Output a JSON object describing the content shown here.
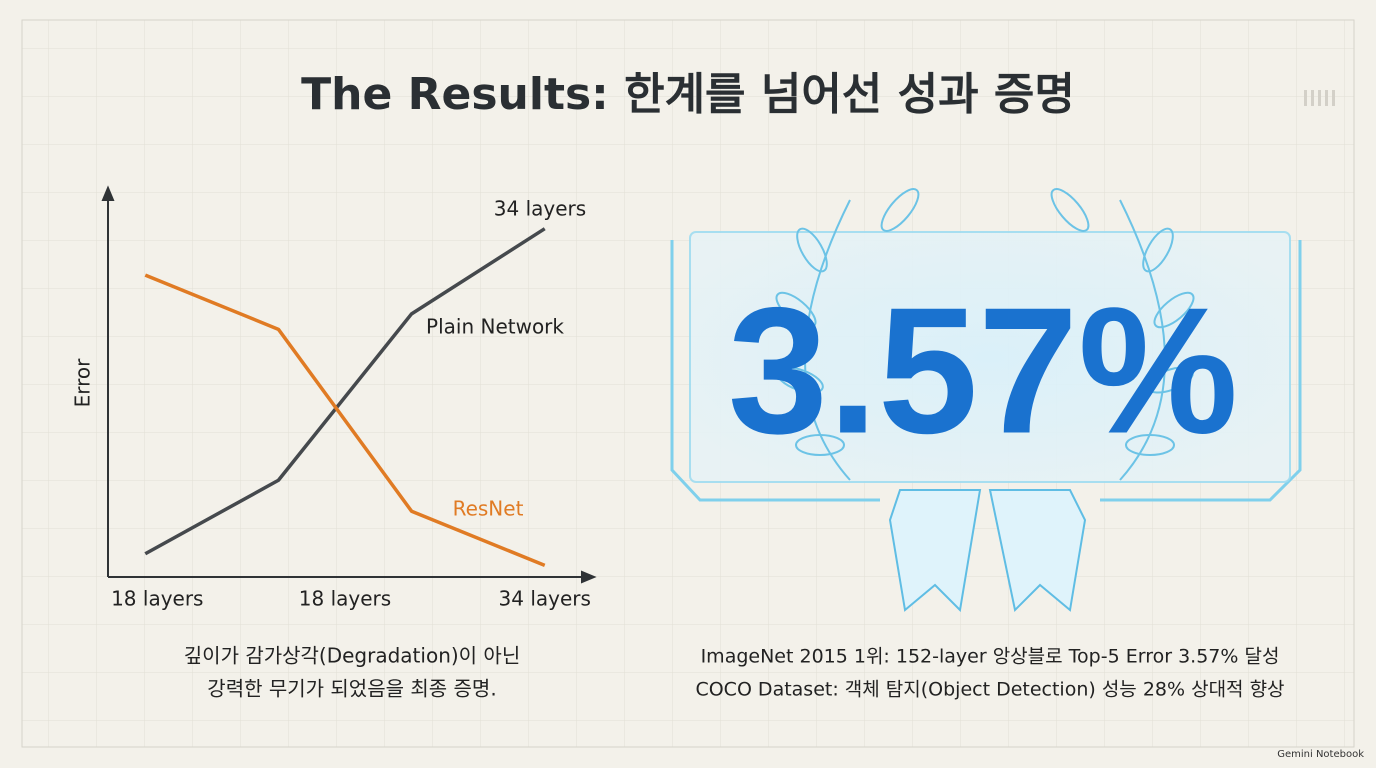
{
  "header": {
    "title": "The Results: 한계를 넘어선 성과 증명"
  },
  "chart_data": {
    "type": "line",
    "y_label": "Error",
    "x": [
      0,
      1,
      2,
      3
    ],
    "xlim": [
      -0.28,
      3.34
    ],
    "xticks": [
      {
        "value": 0,
        "label": "18 layers"
      },
      {
        "value": 1.5,
        "label": "18 layers"
      },
      {
        "value": 3,
        "label": "34 layers"
      }
    ],
    "ylim": [
      0,
      10
    ],
    "series": [
      {
        "name": "Plain Network",
        "color": "#45494d",
        "values": [
          0.6,
          2.5,
          6.8,
          9.0
        ]
      },
      {
        "name": "ResNet",
        "color": "#e07b24",
        "values": [
          7.8,
          6.4,
          1.7,
          0.3
        ]
      }
    ],
    "annotations": [
      "34 layers"
    ]
  },
  "highlight": {
    "value": "3.57%"
  },
  "captions": {
    "left": [
      "깊이가 감가상각(Degradation)이 아닌",
      "강력한 무기가 되었음을 최종 증명."
    ],
    "right": [
      "ImageNet 2015 1위: 152-layer 앙상블로 Top-5 Error 3.57% 달성",
      "COCO Dataset: 객체 탐지(Object Detection) 성능 28% 상대적 향상"
    ]
  },
  "watermark": "Gemini Notebook"
}
